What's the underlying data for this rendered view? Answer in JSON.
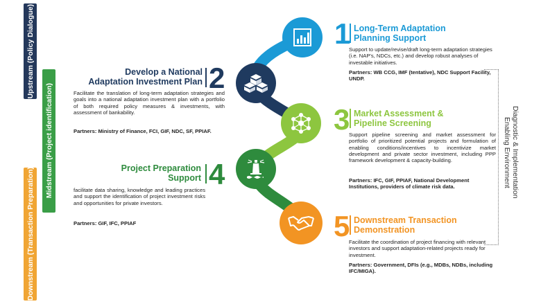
{
  "sidebar": {
    "upstream": "Upstream (Policy Dialogue)",
    "midstream": "Midstream (Project identification)",
    "downstream": "Downstream (Transaction Preparation)"
  },
  "enabling": {
    "line1": "Enabling Environment",
    "line2": "Diagnostic & Implementation"
  },
  "colors": {
    "blue": "#1b9ad6",
    "navy": "#1f3a5f",
    "green": "#8dc63f",
    "dark_green": "#2e8b3d",
    "orange": "#f29423",
    "sidebar_navy": "#24385b",
    "sidebar_green": "#3a9e47",
    "sidebar_orange": "#f0a534"
  },
  "steps": [
    {
      "number": "1",
      "title_line1": "Long-Term Adaptation",
      "title_line2": "Planning Support",
      "body": "Support to update/revise/draft long-term adaptation strategies (i.e. NAP's, NDCs, etc.) and develop robust analyses of investable initiatives.",
      "partners": "Partners: WB CCG, IMF (tentative), NDC Support Facility, UNDP.",
      "icon": "bar-chart-icon"
    },
    {
      "number": "2",
      "title_line1": "Develop a National",
      "title_line2": "Adaptation Investment Plan",
      "body": "Facilitate the translation of long-term adaptation strategies and goals into a national adaptation investment plan with a portfolio of both required policy measures & investments, with assessment of bankability.",
      "partners": "Partners: Ministry of Finance, FCI, GIF, NDC, SF, PPIAF.",
      "icon": "stacked-boxes-icon"
    },
    {
      "number": "3",
      "title_line1": "Market Assessment &",
      "title_line2": "Pipeline Screening",
      "body": "Support pipeline screening and market assessment for portfolio of prioritized potential projects and formulation of enabling conditions/incentives to incentivize market development and private sector investment, including PPP framework development & capacity-building.",
      "partners": "Partners: IFC, GIF, PPIAF, National Development Institutions, providers of climate risk data.",
      "icon": "network-icon"
    },
    {
      "number": "4",
      "title_line1": "Project Preparation",
      "title_line2": "Support",
      "body": "facilitate data sharing, knowledge and leading practices and support the identification of project investment risks and opportunities for private investors.",
      "partners": "Partners: GIF, IFC, PPIAF",
      "icon": "lighthouse-icon"
    },
    {
      "number": "5",
      "title_line1": "Downstream Transaction",
      "title_line2": "Demonstration",
      "body": "Facilitate the coordination of project financing with relevant investors and support adaptation-related projects ready for investment.",
      "partners": "Partners: Government, DFIs (e.g., MDBs, NDBs, including IFC/MIGA).",
      "icon": "handshake-icon"
    }
  ]
}
